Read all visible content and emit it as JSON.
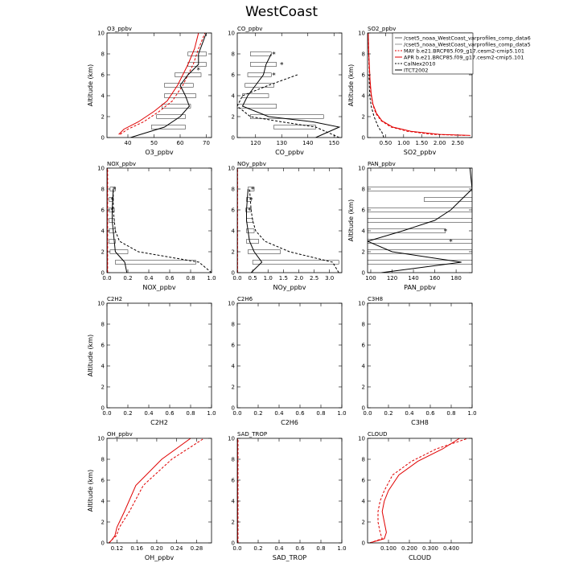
{
  "figure_title": "WestCoast",
  "chart_data": [
    {
      "type": "line",
      "title": "O3_ppbv",
      "xlabel": "O3_ppbv",
      "ylabel": "Altitude (km)",
      "xlim": [
        32,
        72
      ],
      "ylim": [
        0,
        10
      ],
      "xticks": [
        40,
        50,
        60,
        70
      ],
      "xtick_labels": [
        "40",
        "50",
        "60",
        "70"
      ],
      "yticks": [
        0,
        2,
        4,
        6,
        8,
        10
      ],
      "series": [
        {
          "style": "red-solid",
          "x": [
            36.5,
            38.5,
            44,
            50,
            55,
            59,
            63,
            65.5,
            67
          ],
          "y": [
            0.3,
            0.8,
            1.5,
            2.5,
            3.5,
            5,
            7,
            8.5,
            10
          ]
        },
        {
          "style": "red-dash",
          "x": [
            37,
            40,
            46,
            52,
            57,
            61,
            65,
            67,
            69.5
          ],
          "y": [
            0.3,
            0.8,
            1.5,
            2.5,
            3.5,
            5,
            7,
            8.5,
            10
          ]
        },
        {
          "style": "black-solid",
          "x": [
            41,
            54,
            60,
            63.5,
            62,
            60,
            63,
            67,
            67,
            70
          ],
          "y": [
            0,
            1,
            2,
            3,
            4,
            5,
            6,
            7,
            8,
            10
          ]
        }
      ],
      "obs": [
        {
          "y": 1,
          "lo": 49,
          "hi": 62
        },
        {
          "y": 2,
          "lo": 51,
          "hi": 62
        },
        {
          "y": 3,
          "lo": 53,
          "hi": 64
        },
        {
          "y": 4,
          "lo": 54,
          "hi": 66
        },
        {
          "y": 5,
          "lo": 54,
          "hi": 65
        },
        {
          "y": 6,
          "lo": 58,
          "hi": 68
        },
        {
          "y": 7,
          "lo": 63,
          "hi": 70
        },
        {
          "y": 8,
          "lo": 63,
          "hi": 70
        }
      ],
      "stars": [
        {
          "x": 67,
          "y": 6.5
        }
      ]
    },
    {
      "type": "line",
      "title": "CO_ppbv",
      "xlabel": "CO_ppbv",
      "ylabel": "",
      "xlim": [
        113,
        153
      ],
      "ylim": [
        0,
        10
      ],
      "xticks": [
        120,
        130,
        140,
        150
      ],
      "xtick_labels": [
        "120",
        "130",
        "140",
        "150"
      ],
      "yticks": [
        0,
        2,
        4,
        6,
        8,
        10
      ],
      "series": [
        {
          "style": "black-solid",
          "x": [
            143,
            152,
            142,
            125,
            115,
            117,
            120,
            123,
            124,
            126
          ],
          "y": [
            0,
            1,
            1.5,
            2,
            3,
            4,
            5,
            6,
            7,
            8
          ]
        },
        {
          "style": "black-dash",
          "x": [
            152,
            143,
            130,
            118,
            113,
            115,
            125,
            136
          ],
          "y": [
            0,
            1,
            1.5,
            2,
            3,
            4,
            5,
            6
          ]
        }
      ],
      "obs": [
        {
          "y": 1,
          "lo": 127,
          "hi": 143
        },
        {
          "y": 2,
          "lo": 118,
          "hi": 146
        },
        {
          "y": 3,
          "lo": 113,
          "hi": 128
        },
        {
          "y": 4,
          "lo": 115,
          "hi": 125
        },
        {
          "y": 5,
          "lo": 116,
          "hi": 127
        },
        {
          "y": 6,
          "lo": 117,
          "hi": 126
        },
        {
          "y": 7,
          "lo": 118,
          "hi": 128
        },
        {
          "y": 8,
          "lo": 118,
          "hi": 126
        }
      ],
      "stars": [
        {
          "x": 127,
          "y": 8
        },
        {
          "x": 130,
          "y": 7
        },
        {
          "x": 127,
          "y": 6
        }
      ]
    },
    {
      "type": "line",
      "title": "SO2_ppbv",
      "xlabel": "SO2_ppbv",
      "ylabel": "Altitude (km)",
      "xlim": [
        0,
        2.9
      ],
      "ylim": [
        0,
        10
      ],
      "xticks": [
        0.5,
        1.0,
        1.5,
        2.0,
        2.5
      ],
      "xtick_labels": [
        "0.50",
        "1.00",
        "1.50",
        "2.00",
        "2.50"
      ],
      "yticks": [
        0,
        2,
        4,
        6,
        8,
        10
      ],
      "series": [
        {
          "style": "red-solid",
          "x": [
            2.85,
            2.0,
            1.2,
            0.7,
            0.4,
            0.25,
            0.15,
            0.1,
            0.07,
            0.05,
            0.03,
            0.02
          ],
          "y": [
            0.2,
            0.3,
            0.6,
            1.0,
            1.6,
            2.3,
            3.2,
            4.2,
            5.5,
            7,
            8.5,
            10
          ]
        },
        {
          "style": "red-dash",
          "x": [
            2.7,
            1.8,
            1.1,
            0.65,
            0.38,
            0.23,
            0.14,
            0.09,
            0.06,
            0.04,
            0.03,
            0.02
          ],
          "y": [
            0.2,
            0.3,
            0.6,
            1.0,
            1.6,
            2.3,
            3.2,
            4.2,
            5.5,
            7,
            8.5,
            10
          ]
        },
        {
          "style": "black-dash",
          "x": [
            0.45,
            0.4,
            0.3,
            0.18,
            0.1,
            0.06,
            0.05,
            0.04
          ],
          "y": [
            0,
            0.5,
            1,
            2,
            3,
            4,
            5,
            6
          ]
        }
      ],
      "obs": [],
      "stars": []
    },
    {
      "type": "line",
      "title": "NOX_ppbv",
      "xlabel": "NOX_ppbv",
      "ylabel": "",
      "xlim": [
        0,
        1.0
      ],
      "ylim": [
        0,
        10
      ],
      "xticks": [
        0,
        0.2,
        0.4,
        0.6,
        0.8,
        1.0
      ],
      "xtick_labels": [
        "0.0",
        "0.2",
        "0.4",
        "0.6",
        "0.8",
        "1.0"
      ],
      "yticks": [
        0,
        2,
        4,
        6,
        8,
        10
      ],
      "series": [
        {
          "style": "red-solid",
          "x": [
            0.003,
            0.003
          ],
          "y": [
            0,
            10
          ]
        },
        {
          "style": "red-dash",
          "x": [
            0.006,
            0.006
          ],
          "y": [
            0,
            10
          ]
        },
        {
          "style": "black-solid",
          "x": [
            0.19,
            0.17,
            0.08,
            0.07,
            0.06,
            0.05,
            0.05,
            0.06
          ],
          "y": [
            0,
            1,
            2,
            3,
            4,
            5,
            6,
            8
          ]
        },
        {
          "style": "black-dash",
          "x": [
            1.0,
            0.88,
            0.3,
            0.12,
            0.08,
            0.07,
            0.06,
            0.06
          ],
          "y": [
            0,
            1,
            2,
            3,
            4,
            5,
            6,
            8
          ]
        }
      ],
      "obs": [
        {
          "y": 1,
          "lo": 0.08,
          "hi": 0.85
        },
        {
          "y": 2,
          "lo": 0.03,
          "hi": 0.2
        },
        {
          "y": 3,
          "lo": 0.02,
          "hi": 0.08
        },
        {
          "y": 4,
          "lo": 0.02,
          "hi": 0.08
        },
        {
          "y": 5,
          "lo": 0.02,
          "hi": 0.07
        },
        {
          "y": 6,
          "lo": 0.02,
          "hi": 0.07
        },
        {
          "y": 7,
          "lo": 0.02,
          "hi": 0.06
        },
        {
          "y": 8,
          "lo": 0.03,
          "hi": 0.08
        }
      ],
      "stars": [
        {
          "x": 0.07,
          "y": 8
        },
        {
          "x": 0.05,
          "y": 7
        },
        {
          "x": 0.05,
          "y": 6
        }
      ]
    },
    {
      "type": "line",
      "title": "NOy_ppbv",
      "xlabel": "NOy_ppbv",
      "ylabel": "",
      "xlim": [
        0,
        3.4
      ],
      "ylim": [
        0,
        10
      ],
      "xticks": [
        0,
        0.5,
        1.0,
        1.5,
        2.0,
        2.5,
        3.0
      ],
      "xtick_labels": [
        "0.0",
        "0.5",
        "1.0",
        "1.5",
        "2.0",
        "2.5",
        "3.0"
      ],
      "yticks": [
        0,
        2,
        4,
        6,
        8,
        10
      ],
      "series": [
        {
          "style": "red-solid",
          "x": [
            0.005,
            0.005
          ],
          "y": [
            0,
            10
          ]
        },
        {
          "style": "red-dash",
          "x": [
            0.01,
            0.01
          ],
          "y": [
            0,
            10
          ]
        },
        {
          "style": "black-solid",
          "x": [
            0.45,
            0.8,
            0.55,
            0.4,
            0.35,
            0.3,
            0.3,
            0.35
          ],
          "y": [
            0,
            1,
            2,
            3,
            4,
            5,
            6,
            8
          ]
        },
        {
          "style": "black-dash",
          "x": [
            3.3,
            3.1,
            1.7,
            0.9,
            0.6,
            0.5,
            0.45,
            0.4
          ],
          "y": [
            0,
            1,
            2,
            3,
            4,
            5,
            6,
            8
          ]
        }
      ],
      "obs": [
        {
          "y": 1,
          "lo": 0.5,
          "hi": 3.3
        },
        {
          "y": 2,
          "lo": 0.35,
          "hi": 1.4
        },
        {
          "y": 3,
          "lo": 0.3,
          "hi": 0.7
        },
        {
          "y": 4,
          "lo": 0.3,
          "hi": 0.55
        },
        {
          "y": 5,
          "lo": 0.3,
          "hi": 0.5
        },
        {
          "y": 6,
          "lo": 0.28,
          "hi": 0.45
        },
        {
          "y": 7,
          "lo": 0.3,
          "hi": 0.45
        },
        {
          "y": 8,
          "lo": 0.35,
          "hi": 0.55
        }
      ],
      "stars": [
        {
          "x": 0.5,
          "y": 8
        },
        {
          "x": 0.45,
          "y": 7
        },
        {
          "x": 0.4,
          "y": 6
        }
      ]
    },
    {
      "type": "line",
      "title": "PAN_ppbv",
      "xlabel": "PAN_ppbv",
      "ylabel": "Altitude (km)",
      "xlim": [
        97,
        195
      ],
      "ylim": [
        0,
        10
      ],
      "xticks": [
        100,
        120,
        140,
        160,
        180
      ],
      "xtick_labels": [
        "100",
        "120",
        "140",
        "160",
        "180"
      ],
      "yticks": [
        0,
        2,
        4,
        6,
        8,
        10
      ],
      "series": [
        {
          "style": "black-solid",
          "x": [
            110,
            185,
            120,
            97,
            130,
            160,
            175,
            185,
            195,
            193
          ],
          "y": [
            0,
            1,
            2,
            3,
            4,
            5,
            6,
            7,
            8,
            10
          ]
        }
      ],
      "obs": [
        {
          "y": 1,
          "lo": 97,
          "hi": 195
        },
        {
          "y": 2,
          "lo": 97,
          "hi": 195
        },
        {
          "y": 3,
          "lo": 97,
          "hi": 195
        },
        {
          "y": 4,
          "lo": 97,
          "hi": 170
        },
        {
          "y": 5,
          "lo": 97,
          "hi": 195
        },
        {
          "y": 6,
          "lo": 97,
          "hi": 195
        },
        {
          "y": 7,
          "lo": 150,
          "hi": 195
        },
        {
          "y": 8,
          "lo": 97,
          "hi": 195
        }
      ],
      "stars": [
        {
          "x": 170,
          "y": 4
        },
        {
          "x": 175,
          "y": 3
        }
      ]
    },
    {
      "type": "line",
      "title": "C2H2",
      "xlabel": "C2H2",
      "ylabel": "Altitude (km)",
      "xlim": [
        0,
        1
      ],
      "ylim": [
        0,
        10
      ],
      "xticks": [
        0,
        0.2,
        0.4,
        0.6,
        0.8,
        1.0
      ],
      "xtick_labels": [
        "0.0",
        "0.2",
        "0.4",
        "0.6",
        "0.8",
        "1.0"
      ],
      "yticks": [
        0,
        2,
        4,
        6,
        8,
        10
      ],
      "series": [],
      "obs": [],
      "stars": []
    },
    {
      "type": "line",
      "title": "C2H6",
      "xlabel": "C2H6",
      "ylabel": "",
      "xlim": [
        0,
        1
      ],
      "ylim": [
        0,
        10
      ],
      "xticks": [
        0,
        0.2,
        0.4,
        0.6,
        0.8,
        1.0
      ],
      "xtick_labels": [
        "0.0",
        "0.2",
        "0.4",
        "0.6",
        "0.8",
        "1.0"
      ],
      "yticks": [
        0,
        2,
        4,
        6,
        8,
        10
      ],
      "series": [],
      "obs": [],
      "stars": []
    },
    {
      "type": "line",
      "title": "C3H8",
      "xlabel": "C3H8",
      "ylabel": "",
      "xlim": [
        0,
        1
      ],
      "ylim": [
        0,
        10
      ],
      "xticks": [
        0,
        0.2,
        0.4,
        0.6,
        0.8,
        1.0
      ],
      "xtick_labels": [
        "0.0",
        "0.2",
        "0.4",
        "0.6",
        "0.8",
        "1.0"
      ],
      "yticks": [
        0,
        2,
        4,
        6,
        8,
        10
      ],
      "series": [],
      "obs": [],
      "stars": []
    },
    {
      "type": "line",
      "title": "OH_ppbv",
      "xlabel": "OH_ppbv",
      "ylabel": "Altitude (km)",
      "xlim": [
        0.1,
        0.31
      ],
      "ylim": [
        0,
        10
      ],
      "xticks": [
        0.12,
        0.16,
        0.2,
        0.24,
        0.28
      ],
      "xtick_labels": [
        "0.12",
        "0.16",
        "0.20",
        "0.24",
        "0.28"
      ],
      "yticks": [
        0,
        2,
        4,
        6,
        8,
        10
      ],
      "series": [
        {
          "style": "red-solid",
          "x": [
            0.104,
            0.11,
            0.116,
            0.12,
            0.135,
            0.158,
            0.21,
            0.268
          ],
          "y": [
            0,
            0.3,
            0.7,
            1.5,
            3,
            5.5,
            8,
            10
          ]
        },
        {
          "style": "red-dash",
          "x": [
            0.104,
            0.11,
            0.119,
            0.125,
            0.145,
            0.173,
            0.23,
            0.295
          ],
          "y": [
            0,
            0.3,
            0.7,
            1.5,
            3,
            5.5,
            8,
            10
          ]
        }
      ],
      "obs": [],
      "stars": []
    },
    {
      "type": "line",
      "title": "SAD_TROP",
      "xlabel": "SAD_TROP",
      "ylabel": "",
      "xlim": [
        0,
        1
      ],
      "ylim": [
        0,
        10
      ],
      "xticks": [
        0,
        0.2,
        0.4,
        0.6,
        0.8,
        1.0
      ],
      "xtick_labels": [
        "0.0",
        "0.2",
        "0.4",
        "0.6",
        "0.8",
        "1.0"
      ],
      "yticks": [
        0,
        2,
        4,
        6,
        8,
        10
      ],
      "series": [
        {
          "style": "red-solid",
          "x": [
            0.003,
            0.003
          ],
          "y": [
            0,
            10
          ]
        },
        {
          "style": "red-dash",
          "x": [
            0.007,
            0.007
          ],
          "y": [
            0,
            10
          ]
        }
      ],
      "obs": [],
      "stars": []
    },
    {
      "type": "line",
      "title": "CLOUD",
      "xlabel": "CLOUD",
      "ylabel": "",
      "xlim": [
        0,
        0.5
      ],
      "ylim": [
        0,
        10
      ],
      "xticks": [
        0.1,
        0.2,
        0.3,
        0.4
      ],
      "xtick_labels": [
        "0.100",
        "0.200",
        "0.300",
        "0.400"
      ],
      "yticks": [
        0,
        2,
        4,
        6,
        8,
        10
      ],
      "series": [
        {
          "style": "red-solid",
          "x": [
            0.01,
            0.08,
            0.09,
            0.08,
            0.07,
            0.08,
            0.1,
            0.15,
            0.24,
            0.36,
            0.44
          ],
          "y": [
            0,
            0.4,
            1.0,
            2.0,
            3.0,
            4.0,
            5.0,
            6.5,
            7.8,
            9,
            10
          ]
        },
        {
          "style": "red-dash",
          "x": [
            0.01,
            0.07,
            0.06,
            0.05,
            0.05,
            0.06,
            0.08,
            0.12,
            0.21,
            0.33,
            0.48
          ],
          "y": [
            0,
            0.4,
            1.0,
            2.0,
            3.0,
            4.0,
            5.0,
            6.5,
            7.8,
            9,
            10
          ]
        }
      ],
      "obs": [],
      "stars": []
    }
  ],
  "legend": {
    "entries": [
      {
        "label": "/cset5_noaa_WestCoast_varprofiles_comp_data6",
        "color": "#666666",
        "dash": false
      },
      {
        "label": "/cset5_noaa_WestCoast_varprofiles_comp_data5",
        "color": "#999999",
        "dash": false
      },
      {
        "label": "MAY b.e21.BRCP85.f09_g17.cesm2-cmip5.101",
        "color": "#e00000",
        "dash": true
      },
      {
        "label": "APR b.e21.BRCP85.f09_g17.cesm2-cmip5.101",
        "color": "#e00000",
        "dash": false
      },
      {
        "label": "CalNex2010",
        "color": "#000000",
        "dash": true
      },
      {
        "label": "ITCT2002",
        "color": "#000000",
        "dash": false
      }
    ]
  }
}
